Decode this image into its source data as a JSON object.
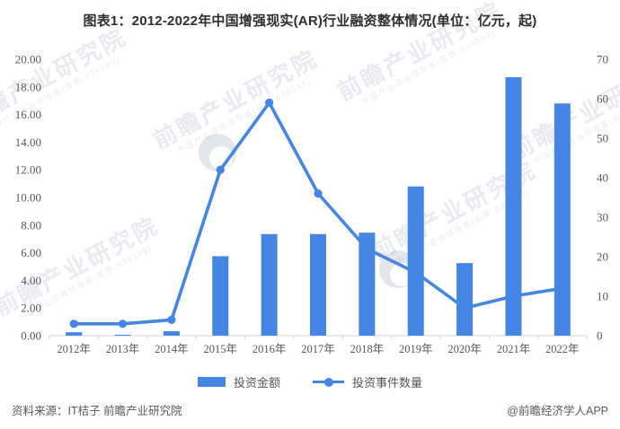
{
  "title": "图表1：2012-2022年中国增强现实(AR)行业融资整体情况(单位：亿元，起)",
  "colors": {
    "series_blue": "#4585E4",
    "axis_text": "#595959",
    "axis_line": "#d6d6d6",
    "title_text": "#2e2e2e"
  },
  "legend": {
    "bar_label": "投资金额",
    "line_label": "投资事件数量"
  },
  "footer": {
    "source": "资料来源：IT桔子 前瞻产业研究院",
    "credit": "@前瞻经济学人APP"
  },
  "watermark": {
    "brand": "前瞻产业研究院",
    "sub": "中国产业咨询领导者(股票:839599)"
  },
  "chart_data": {
    "type": "bar",
    "subtype": "bar+line combo, dual y-axis",
    "title": "图表1：2012-2022年中国增强现实(AR)行业融资整体情况(单位：亿元，起)",
    "categories": [
      "2012年",
      "2013年",
      "2014年",
      "2015年",
      "2016年",
      "2017年",
      "2018年",
      "2019年",
      "2020年",
      "2021年",
      "2022年"
    ],
    "series": [
      {
        "name": "投资金额",
        "type": "bar",
        "axis": "left",
        "unit": "亿元",
        "values": [
          0.25,
          0.05,
          0.32,
          5.75,
          7.35,
          7.35,
          7.45,
          10.8,
          5.25,
          18.7,
          16.8
        ]
      },
      {
        "name": "投资事件数量",
        "type": "line",
        "axis": "right",
        "unit": "起",
        "values": [
          3,
          3,
          4,
          42,
          59,
          36,
          22,
          16,
          7,
          10,
          12
        ]
      }
    ],
    "left_axis": {
      "min": 0,
      "max": 20,
      "step": 2,
      "ticks": [
        "0.00",
        "2.00",
        "4.00",
        "6.00",
        "8.00",
        "10.00",
        "12.00",
        "14.00",
        "16.00",
        "18.00",
        "20.00"
      ]
    },
    "right_axis": {
      "min": 0,
      "max": 70,
      "step": 10,
      "ticks": [
        "0",
        "10",
        "20",
        "30",
        "40",
        "50",
        "60",
        "70"
      ]
    },
    "grid": false,
    "legend_position": "bottom"
  }
}
